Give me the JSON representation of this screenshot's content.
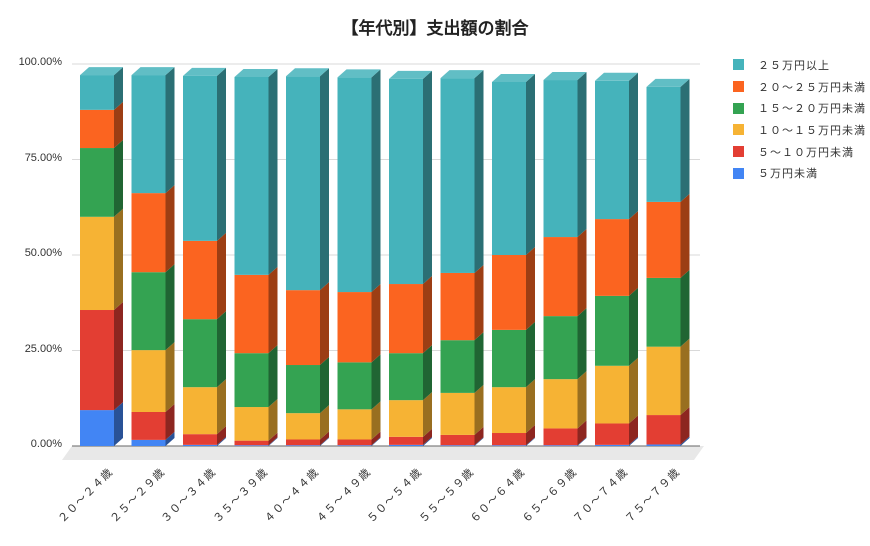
{
  "chart_data": {
    "type": "bar",
    "stacked": true,
    "percent_stacked": true,
    "three_d": true,
    "title": "【年代別】支出額の割合",
    "xlabel": "",
    "ylabel": "",
    "ylim": [
      0,
      100
    ],
    "yticks": [
      "0.00%",
      "25.00%",
      "50.00%",
      "75.00%",
      "100.00%"
    ],
    "grid": true,
    "legend_position": "right",
    "categories": [
      "２０～２４歳",
      "２５～２９歳",
      "３０～３４歳",
      "３５～３９歳",
      "４０～４４歳",
      "４５～４９歳",
      "５０～５４歳",
      "５５～５９歳",
      "６０～６４歳",
      "６５～６９歳",
      "７０～７４歳",
      "７５～７９歳"
    ],
    "series": [
      {
        "name": "５万円未満",
        "color": "#4285f4",
        "values": [
          9.4,
          1.6,
          0.3,
          0.2,
          0.2,
          0.2,
          0.3,
          0.2,
          0.2,
          0.2,
          0.3,
          0.4
        ]
      },
      {
        "name": "５～１０万円未満",
        "color": "#e33e33",
        "values": [
          26.2,
          7.3,
          2.8,
          1.2,
          1.5,
          1.5,
          2.1,
          2.7,
          3.2,
          4.4,
          5.6,
          7.7
        ]
      },
      {
        "name": "１０～１５万円未満",
        "color": "#f6b334",
        "values": [
          24.4,
          16.2,
          12.3,
          8.8,
          6.9,
          7.9,
          9.6,
          11.0,
          12.0,
          12.9,
          15.1,
          17.9
        ]
      },
      {
        "name": "１５～２０万円未満",
        "color": "#34a352",
        "values": [
          18.0,
          20.4,
          17.8,
          14.1,
          12.6,
          12.3,
          12.3,
          13.8,
          15.0,
          16.5,
          18.3,
          18.0
        ]
      },
      {
        "name": "２０～２５万円未満",
        "color": "#fb6420",
        "values": [
          10.0,
          20.7,
          20.5,
          20.5,
          19.6,
          18.4,
          18.1,
          17.6,
          19.6,
          20.7,
          20.1,
          19.9
        ]
      },
      {
        "name": "２５万円以上",
        "color": "#45b3bb",
        "values": [
          9.1,
          30.9,
          43.2,
          51.8,
          56.0,
          56.2,
          53.7,
          51.0,
          45.3,
          41.1,
          36.2,
          30.1
        ]
      }
    ]
  },
  "legend_order": [
    5,
    4,
    3,
    2,
    1,
    0
  ]
}
